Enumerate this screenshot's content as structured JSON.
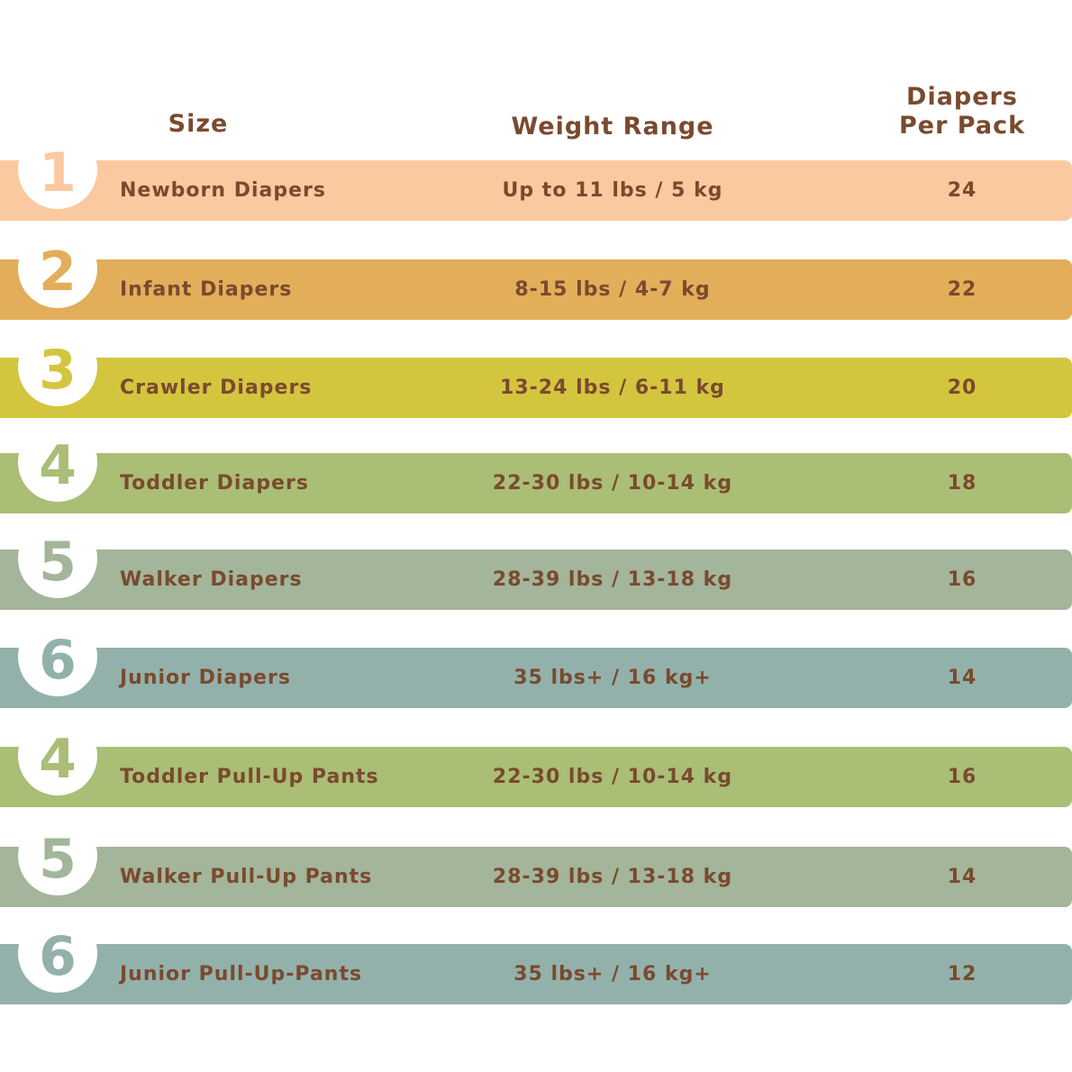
{
  "header": {
    "size": "Size",
    "weight": "Weight Range",
    "per_pack_line1": "Diapers",
    "per_pack_line2": "Per Pack"
  },
  "text_color": "#7a4a2e",
  "rows": [
    {
      "size": "1",
      "name": "Newborn Diapers",
      "weight": "Up to 11 lbs / 5 kg",
      "count": "24",
      "color": "#fbc9a0"
    },
    {
      "size": "2",
      "name": "Infant Diapers",
      "weight": "8-15 lbs / 4-7 kg",
      "count": "22",
      "color": "#e2ae59"
    },
    {
      "size": "3",
      "name": "Crawler Diapers",
      "weight": "13-24 lbs / 6-11 kg",
      "count": "20",
      "color": "#d4c53e"
    },
    {
      "size": "4",
      "name": "Toddler Diapers",
      "weight": "22-30 lbs / 10-14 kg",
      "count": "18",
      "color": "#aabe76"
    },
    {
      "size": "5",
      "name": "Walker Diapers",
      "weight": "28-39 lbs / 13-18 kg",
      "count": "16",
      "color": "#a3b59a"
    },
    {
      "size": "6",
      "name": "Junior Diapers",
      "weight": "35 lbs+ / 16 kg+",
      "count": "14",
      "color": "#93b1ab"
    },
    {
      "size": "4",
      "name": "Toddler Pull-Up Pants",
      "weight": "22-30 lbs / 10-14 kg",
      "count": "16",
      "color": "#aabe76"
    },
    {
      "size": "5",
      "name": "Walker Pull-Up Pants",
      "weight": "28-39 lbs / 13-18 kg",
      "count": "14",
      "color": "#a3b59a"
    },
    {
      "size": "6",
      "name": "Junior Pull-Up-Pants",
      "weight": "35 lbs+ / 16 kg+",
      "count": "12",
      "color": "#93b1ab"
    }
  ]
}
